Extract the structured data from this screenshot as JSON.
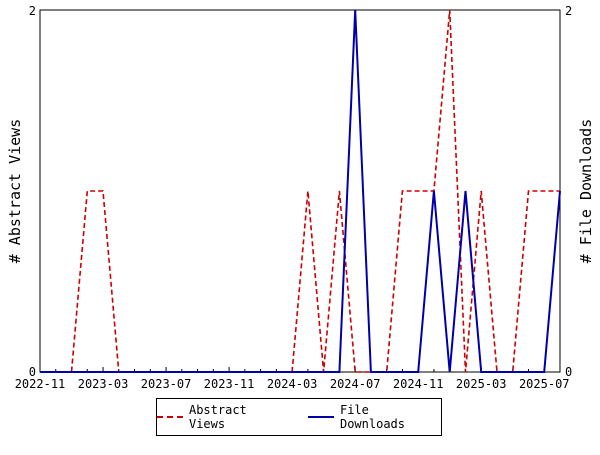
{
  "chart_data": {
    "type": "line",
    "xlabel": "",
    "ylabel_left": "# Abstract Views",
    "ylabel_right": "# File Downloads",
    "ylim": [
      0,
      2
    ],
    "y_ticks_left": [
      "0",
      "2"
    ],
    "y_ticks_right": [
      "0",
      "2"
    ],
    "x_tick_labels": [
      "2022-11",
      "2023-03",
      "2023-07",
      "2023-11",
      "2024-03",
      "2024-07",
      "2024-11",
      "2025-03",
      "2025-07"
    ],
    "x": [
      "2022-11",
      "2022-12",
      "2023-01",
      "2023-02",
      "2023-03",
      "2023-04",
      "2023-05",
      "2023-06",
      "2023-07",
      "2023-08",
      "2023-09",
      "2023-10",
      "2023-11",
      "2023-12",
      "2024-01",
      "2024-02",
      "2024-03",
      "2024-04",
      "2024-05",
      "2024-06",
      "2024-07",
      "2024-08",
      "2024-09",
      "2024-10",
      "2024-11",
      "2024-12",
      "2025-01",
      "2025-02",
      "2025-03",
      "2025-04",
      "2025-05",
      "2025-06",
      "2025-07",
      "2025-08"
    ],
    "series": [
      {
        "name": "Abstract Views",
        "color": "#cc0000",
        "style": "dashed",
        "values": [
          0,
          0,
          0,
          1,
          1,
          0,
          0,
          0,
          0,
          0,
          0,
          0,
          0,
          0,
          0,
          0,
          0,
          1,
          0,
          1,
          0,
          0,
          0,
          1,
          1,
          1,
          2,
          0,
          1,
          0,
          0,
          1,
          1,
          1
        ]
      },
      {
        "name": "File Downloads",
        "color": "#0000aa",
        "style": "solid",
        "values": [
          0,
          0,
          0,
          0,
          0,
          0,
          0,
          0,
          0,
          0,
          0,
          0,
          0,
          0,
          0,
          0,
          0,
          0,
          0,
          0,
          2,
          0,
          0,
          0,
          0,
          1,
          0,
          1,
          0,
          0,
          0,
          0,
          0,
          1
        ]
      }
    ],
    "grid": false,
    "legend_position": "bottom"
  },
  "legend": {
    "abstract_label": "Abstract Views",
    "download_label": "File Downloads"
  }
}
